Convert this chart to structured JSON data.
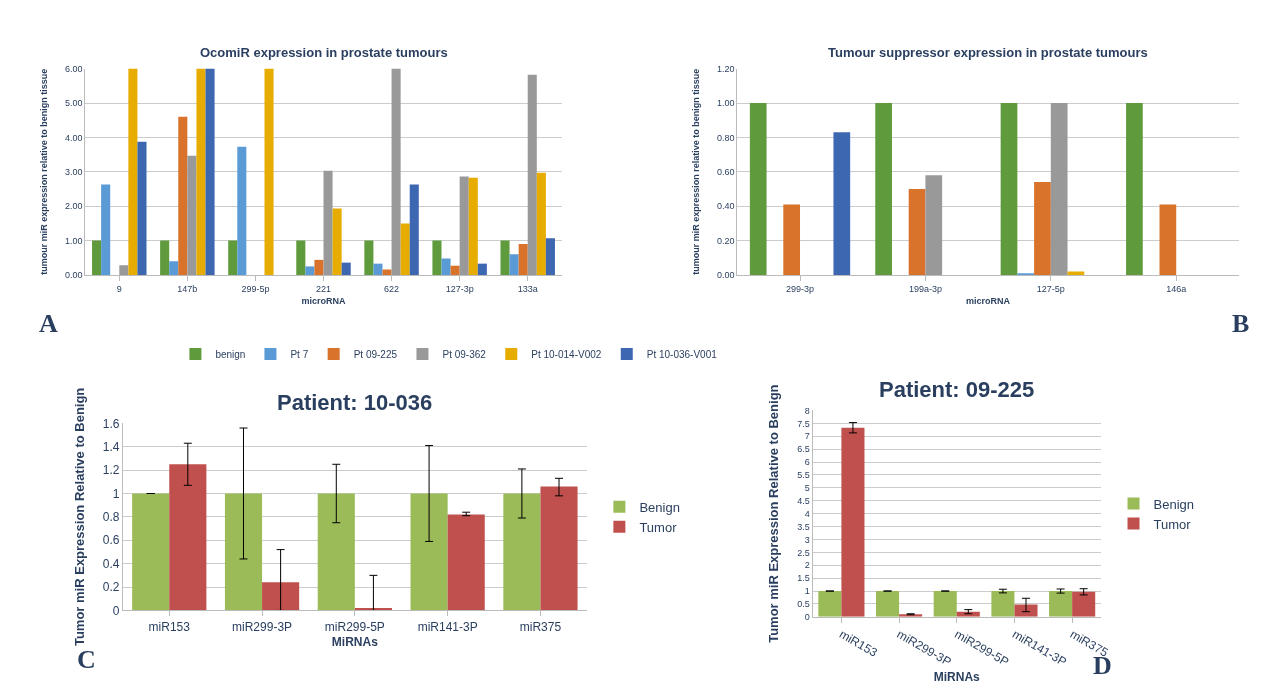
{
  "chart_data": [
    {
      "type": "bar",
      "title": "OcomiR expression in prostate tumours",
      "xlabel": "microRNA",
      "ylabel": "tumour miR expression relative to benign tissue",
      "categories": [
        "9",
        "147b",
        "299-5p",
        "221",
        "622",
        "127-3p",
        "133a"
      ],
      "series": [
        {
          "name": "benign",
          "color": "#5f9b3c",
          "values": [
            1,
            1,
            1,
            1,
            1,
            1,
            1
          ]
        },
        {
          "name": "Pt 7",
          "color": "#5b9bd5",
          "values": [
            2.63,
            0.4,
            3.73,
            0.25,
            0.33,
            0.48,
            0.6
          ]
        },
        {
          "name": "Pt 09-225",
          "color": "#d9722b",
          "values": [
            null,
            4.6,
            null,
            0.44,
            0.16,
            0.27,
            0.9
          ]
        },
        {
          "name": "Pt 09-362",
          "color": "#999999",
          "values": [
            0.28,
            3.47,
            null,
            3.03,
            6.0,
            2.86,
            5.82
          ]
        },
        {
          "name": "Pt 10-014-V002",
          "color": "#e6ac00",
          "values": [
            6.0,
            6.0,
            6.0,
            1.93,
            1.5,
            2.83,
            2.97
          ]
        },
        {
          "name": "Pt 10-036-V001",
          "color": "#3e67b1",
          "values": [
            3.87,
            6.0,
            null,
            0.36,
            2.63,
            0.33,
            1.07
          ]
        }
      ],
      "ylim": [
        0,
        6
      ],
      "yticks": [
        {
          "value": 0,
          "label": "0.00"
        },
        {
          "value": 1,
          "label": "1.00"
        },
        {
          "value": 2,
          "label": "2.00"
        },
        {
          "value": 3,
          "label": "3.00"
        },
        {
          "value": 4,
          "label": "4.00"
        },
        {
          "value": 5,
          "label": "5.00"
        },
        {
          "value": 6,
          "label": "6.00"
        }
      ],
      "grid": "y",
      "legend": "bottom",
      "annotations": [
        "A"
      ]
    },
    {
      "type": "bar",
      "title": "Tumour suppressor expression in prostate tumours",
      "xlabel": "microRNA",
      "ylabel": "tumour miR expression relative to benign tissue",
      "categories": [
        "299-3p",
        "199a-3p",
        "127-5p",
        "146a"
      ],
      "series": [
        {
          "color": "#5f9b3c",
          "values": [
            1,
            1,
            1,
            1
          ]
        },
        {
          "color": "#5b9bd5",
          "values": [
            null,
            null,
            0.01,
            null
          ]
        },
        {
          "color": "#d9722b",
          "values": [
            0.41,
            0.5,
            0.54,
            0.41
          ]
        },
        {
          "color": "#999999",
          "values": [
            null,
            0.58,
            1.0,
            null
          ]
        },
        {
          "color": "#e6ac00",
          "values": [
            null,
            null,
            0.02,
            null
          ]
        },
        {
          "color": "#3e67b1",
          "values": [
            0.83,
            null,
            null,
            null
          ]
        }
      ],
      "ylim": [
        0,
        1.2
      ],
      "yticks": [
        {
          "value": 0,
          "label": "0.00"
        },
        {
          "value": 0.2,
          "label": "0.20"
        },
        {
          "value": 0.4,
          "label": "0.40"
        },
        {
          "value": 0.6,
          "label": "0.60"
        },
        {
          "value": 0.8,
          "label": "0.80"
        },
        {
          "value": 1,
          "label": "1.00"
        },
        {
          "value": 1.2,
          "label": "1.20"
        }
      ],
      "grid": "y",
      "annotations": [
        "B"
      ]
    },
    {
      "type": "bar",
      "title": "Patient: 10-036",
      "xlabel": "MiRNAs",
      "ylabel": "Tumor miR Expression Relative to Benign",
      "categories": [
        "miR153",
        "miR299-3P",
        "miR299-5P",
        "miR141-3P",
        "miR375"
      ],
      "series": [
        {
          "name": "Benign",
          "color": "#9bbb59",
          "values": [
            1,
            1,
            1,
            1,
            1
          ],
          "errors": [
            null,
            [
              0.44,
              1.56
            ],
            [
              0.75,
              1.25
            ],
            [
              0.59,
              1.41
            ],
            [
              0.79,
              1.21
            ]
          ]
        },
        {
          "name": "Tumor",
          "color": "#c0504d",
          "values": [
            1.25,
            0.24,
            0.02,
            0.82,
            1.06
          ],
          "errors": [
            [
              1.07,
              1.43
            ],
            [
              0,
              0.52
            ],
            [
              0,
              0.3
            ],
            [
              0.81,
              0.84
            ],
            [
              0.98,
              1.13
            ]
          ]
        }
      ],
      "ylim": [
        0,
        1.6
      ],
      "yticks": [
        0,
        0.2,
        0.4,
        0.6,
        0.8,
        1,
        1.2,
        1.4,
        1.6
      ],
      "grid": "y",
      "legend": "right",
      "annotations": [
        "C"
      ]
    },
    {
      "type": "bar",
      "title": "Patient: 09-225",
      "xlabel": "MiRNAs",
      "ylabel": "Tumor miR Expression Relative to Benign",
      "categories": [
        "miR153",
        "miR299-3P",
        "miR299-5P",
        "miR141-3P",
        "miR375"
      ],
      "series": [
        {
          "name": "Benign",
          "color": "#9bbb59",
          "values": [
            1,
            1,
            1,
            1,
            1
          ],
          "errors": [
            null,
            null,
            null,
            [
              0.93,
              1.07
            ],
            [
              0.92,
              1.08
            ]
          ]
        },
        {
          "name": "Tumor",
          "color": "#c0504d",
          "values": [
            7.33,
            0.1,
            0.2,
            0.48,
            0.97
          ],
          "errors": [
            [
              7.13,
              7.53
            ],
            [
              0.08,
              0.12
            ],
            [
              0.12,
              0.28
            ],
            [
              0.2,
              0.72
            ],
            [
              0.85,
              1.09
            ]
          ]
        }
      ],
      "ylim": [
        0,
        8
      ],
      "yticks": [
        0,
        0.5,
        1,
        1.5,
        2,
        2.5,
        3,
        3.5,
        4,
        4.5,
        5,
        5.5,
        6,
        6.5,
        7,
        7.5,
        8
      ],
      "grid": "y",
      "legend": "right",
      "annotations": [
        "D"
      ]
    }
  ]
}
